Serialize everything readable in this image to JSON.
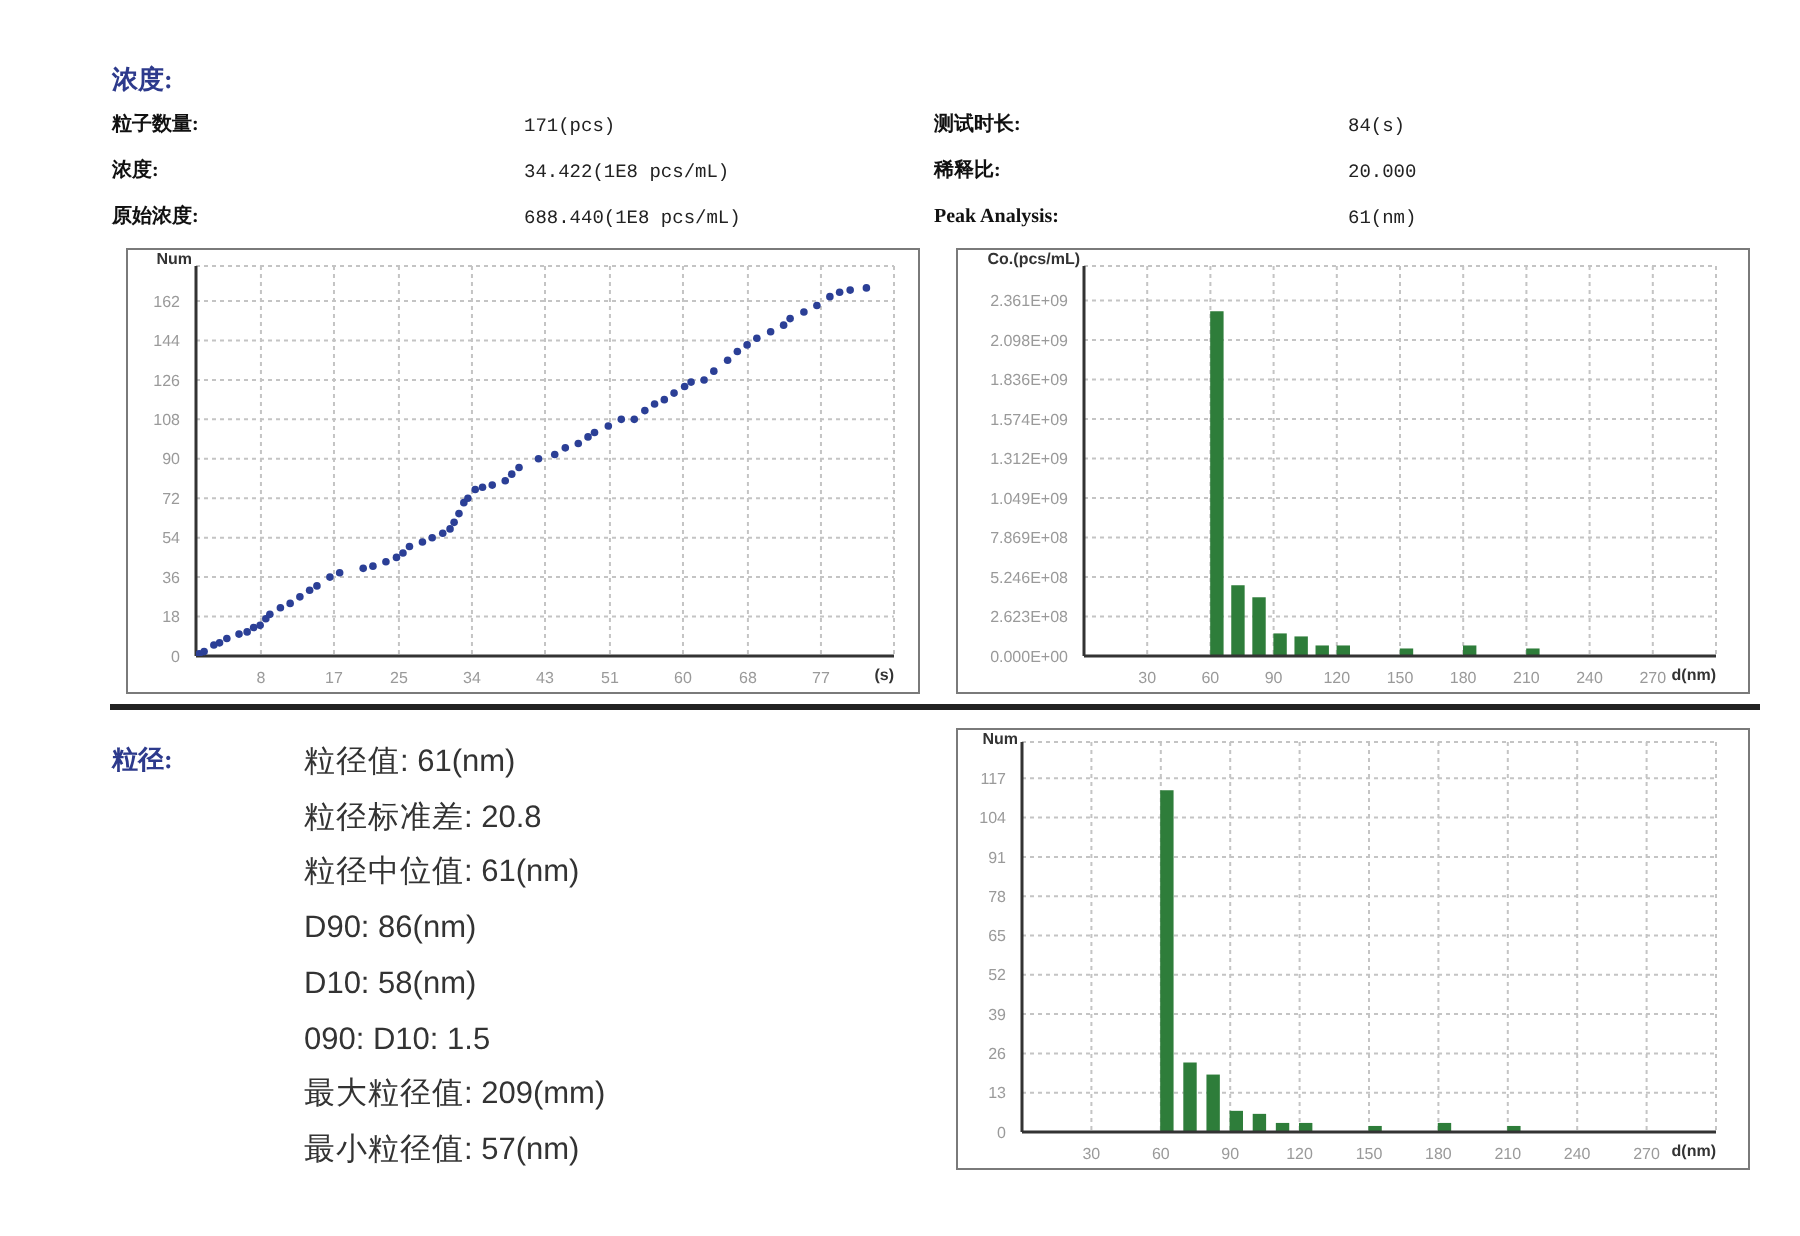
{
  "chart_data": [
    {
      "type": "other",
      "title": "浓度:",
      "annotations": [
        "粒子数量:",
        "171(pcs)",
        "测试时长:",
        "84(s)",
        "浓度:",
        "34.422(1E8 pcs/mL)",
        "稀释比:",
        "20.000",
        "原始浓度:",
        "688.440(1E8 pcs/mL)",
        "Peak Analysis:",
        "61(nm)"
      ]
    },
    {
      "type": "scatter",
      "xlabel": "(s)",
      "ylabel": "Num",
      "color": "#2b3f96",
      "marker": "circle",
      "grid": true,
      "xlim": [
        0,
        86
      ],
      "xticks": [
        8,
        17,
        25,
        34,
        43,
        51,
        60,
        68,
        77
      ],
      "ylim": [
        0,
        178
      ],
      "yticks": [
        0,
        18,
        36,
        54,
        72,
        90,
        108,
        126,
        144,
        162
      ],
      "x": [
        0.4,
        1.0,
        2.2,
        2.9,
        3.8,
        5.3,
        6.3,
        7.1,
        7.9,
        8.6,
        9.1,
        10.4,
        11.6,
        12.8,
        14.0,
        14.9,
        16.5,
        17.7,
        20.6,
        21.8,
        23.4,
        24.7,
        25.5,
        26.3,
        27.9,
        29.1,
        30.4,
        31.3,
        31.8,
        32.4,
        33.0,
        33.5,
        34.4,
        35.3,
        36.5,
        38.1,
        38.9,
        39.8,
        42.2,
        44.2,
        45.5,
        47.1,
        48.3,
        49.1,
        50.8,
        52.4,
        54.0,
        55.3,
        56.5,
        57.7,
        58.9,
        60.2,
        61.0,
        62.6,
        63.8,
        65.5,
        66.7,
        67.9,
        69.1,
        70.8,
        72.4,
        73.2,
        74.9,
        76.5,
        78.1,
        79.3,
        80.6,
        82.6
      ],
      "values": [
        1,
        2,
        5,
        6,
        8,
        10,
        11,
        13,
        14,
        17,
        19,
        22,
        24,
        27,
        30,
        32,
        36,
        38,
        40,
        41,
        43,
        45,
        47,
        50,
        52,
        54,
        56,
        58,
        61,
        65,
        70,
        72,
        76,
        77,
        78,
        80,
        83,
        86,
        90,
        92,
        95,
        97,
        100,
        102,
        105,
        108,
        108,
        112,
        115,
        117,
        120,
        123,
        125,
        126,
        130,
        135,
        139,
        142,
        145,
        148,
        151,
        154,
        157,
        160,
        164,
        166,
        167,
        168
      ]
    },
    {
      "type": "bar",
      "xlabel": "d(nm)",
      "ylabel": "Co.(pcs/mL)",
      "color": "#2e7d3a",
      "grid": true,
      "xlim": [
        0,
        300
      ],
      "xticks": [
        30,
        60,
        90,
        120,
        150,
        180,
        210,
        240,
        270
      ],
      "ylim": [
        0,
        2590000000
      ],
      "yticks": [
        {
          "value": 0,
          "label": "0.000E+00"
        },
        {
          "value": 262300000,
          "label": "2.623E+08"
        },
        {
          "value": 524600000,
          "label": "5.246E+08"
        },
        {
          "value": 786900000,
          "label": "7.869E+08"
        },
        {
          "value": 1049000000,
          "label": "1.049E+09"
        },
        {
          "value": 1312000000,
          "label": "1.312E+09"
        },
        {
          "value": 1574000000,
          "label": "1.574E+09"
        },
        {
          "value": 1836000000,
          "label": "1.836E+09"
        },
        {
          "value": 2098000000,
          "label": "2.098E+09"
        },
        {
          "value": 2361000000,
          "label": "2.361E+09"
        }
      ],
      "x": [
        63,
        73,
        83,
        93,
        103,
        113,
        123,
        153,
        183,
        213
      ],
      "values": [
        2290000000,
        470000000,
        390000000,
        150000000,
        130000000,
        70000000,
        70000000,
        50000000,
        70000000,
        50000000
      ]
    },
    {
      "type": "other",
      "title": "粒径:",
      "annotations": [
        "粒径值: 61(nm)",
        "粒径标准差: 20.8",
        "粒径中位值: 61(nm)",
        "D90: 86(nm)",
        "D10: 58(nm)",
        "090: D10: 1.5",
        "最大粒径值: 209(mm)",
        "最小粒径值: 57(nm)"
      ]
    },
    {
      "type": "bar",
      "xlabel": "d(nm)",
      "ylabel": "Num",
      "color": "#2e7d3a",
      "grid": true,
      "xlim": [
        0,
        300
      ],
      "xticks": [
        30,
        60,
        90,
        120,
        150,
        180,
        210,
        240,
        270
      ],
      "ylim": [
        0,
        129
      ],
      "yticks": [
        0,
        13,
        26,
        39,
        52,
        65,
        78,
        91,
        104,
        117
      ],
      "x": [
        63,
        73,
        83,
        93,
        103,
        113,
        123,
        153,
        183,
        213
      ],
      "values": [
        113,
        23,
        19,
        7,
        6,
        3,
        3,
        2,
        3,
        2
      ]
    }
  ]
}
